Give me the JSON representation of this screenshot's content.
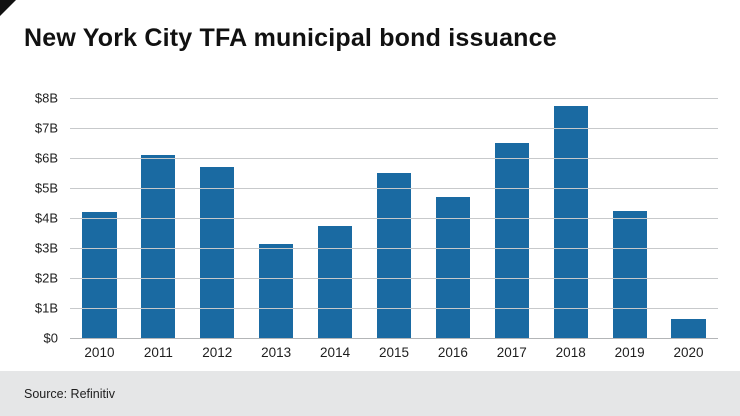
{
  "header": {
    "title": "New York City TFA municipal bond issuance"
  },
  "footer": {
    "source": "Source: Refinitiv"
  },
  "colors": {
    "bar": "#1a6aa2",
    "gridline": "#c7c9cb",
    "footer_bg": "#e5e6e7"
  },
  "chart_data": {
    "type": "bar",
    "title": "New York City TFA municipal bond issuance",
    "categories": [
      "2010",
      "2011",
      "2012",
      "2013",
      "2014",
      "2015",
      "2016",
      "2017",
      "2018",
      "2019",
      "2020"
    ],
    "values": [
      4.2,
      6.1,
      5.7,
      3.15,
      3.75,
      5.5,
      4.7,
      6.5,
      7.75,
      4.25,
      0.65
    ],
    "units": "billions USD",
    "xlabel": "",
    "ylabel": "",
    "ylim": [
      0,
      8
    ],
    "yticks": [
      "$0",
      "$1B",
      "$2B",
      "$3B",
      "$4B",
      "$5B",
      "$6B",
      "$7B",
      "$8B"
    ],
    "grid": true,
    "legend": "none",
    "source": "Source: Refinitiv"
  }
}
